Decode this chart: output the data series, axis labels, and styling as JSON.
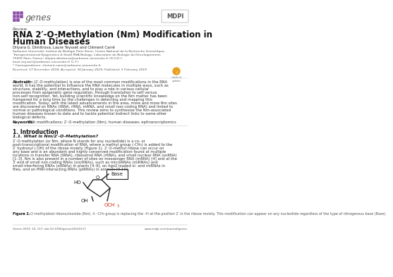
{
  "background_color": "#ffffff",
  "journal_name": "genes",
  "journal_color": "#6d6d6d",
  "mdpi_color": "#555555",
  "article_type": "Review",
  "title": "RNA 2′-O-Methylation (Nm) Modification in\nHuman Diseases",
  "authors": "Dilyara G. Dimitrova, Laure Teysset and Clément Carré",
  "affiliations": [
    "Sorbonne Université, Institut de Biologie Paris Seine, Centre National de la Recherche Scientifique,",
    "Transgenerational Epigenetics & Small RNA Biology, Laboratoire de Biologie du Développement,",
    "75005 Paris, France; dilyara.dimitrova@sorbonne-universite.fr (D.G.D.);",
    "laure.teysset@sorbonne-universite.fr (L.T.)",
    "* Correspondence: clement.carre@sorbonne-universite.fr"
  ],
  "received": "Received: 17 December 2018; Accepted: 30 January 2019; Published: 5 February 2019",
  "abstract_title": "Abstract:",
  "abstract_text": "Nm (2′-O-methylation) is one of the most common modifications in the RNA world. It has the potential to influence the RNA molecules in multiple ways, such as structure, stability, and interactions, and to play a role in various cellular processes from epigenetic gene regulation, through translation to self versus non-self recognition. Yet, building scientific knowledge on the Nm matter has been hampered for a long time by the challenges in detecting and mapping this modification. Today, with the latest advancements in the area, more and more Nm sites are discovered on RNAs (tRNA, rRNA, mRNA, and small non-coding RNA) and linked to normal or pathological conditions. This review aims to synthesize the Nm-associated human diseases known to date and to tackle potential indirect links to some other biological defects.",
  "keywords_title": "Keywords:",
  "keywords_text": "RNA modifications; 2′-O-methylation (Nm); human diseases; epitranscriptomics",
  "section1_title": "1. Introduction",
  "section1_sub": "1.1. What is Nm/2′-O-Methylation?",
  "intro_text": "2′-O-methylation (or Nm, where N stands for any nucleotide) is a co- or post-transcriptional modification of RNA, where a methyl group (-CH₃) is added to the 2′ hydroxyl (-OH) of the ribose moiety (Figure 1). 2′-O-methyl ribose can occur on any base and is an abundant and highly conserved modification found at multiple locations in transfer RNA (tRNA), ribosomal RNA (rRNA), and small nuclear RNA (snRNA) [1–3]. Nm is also present in a number of sites on messenger RNA (mRNA) [4] and at the 3′ end of small non-coding RNAs (sncRNAs), such as microRNAs (miRNAs) and small-interfering RNAs (siRNAs) in plants [4–9], on Ago2 loaded si- and miRNAs in flies, and on PIWI-interacting RNAs (piRNAs) in animals [9,10].",
  "figure_caption": "Figure 1. 2′-O-methylated ribonucleoside (Nm). A –CH₃ group is replacing the –H at the position 2′ in the ribose moiety. This modification can appear on any nucleotide regardless of the type of nitrogenous base (Base).",
  "footer_left": "Genes 2019, 10, 117; doi:10.3390/genes10020117",
  "footer_right": "www.mdpi.com/journal/genes",
  "genes_box_color": "#8B4CA8",
  "title_font_size": 8.5,
  "body_font_size": 4.2,
  "small_font_size": 3.5
}
